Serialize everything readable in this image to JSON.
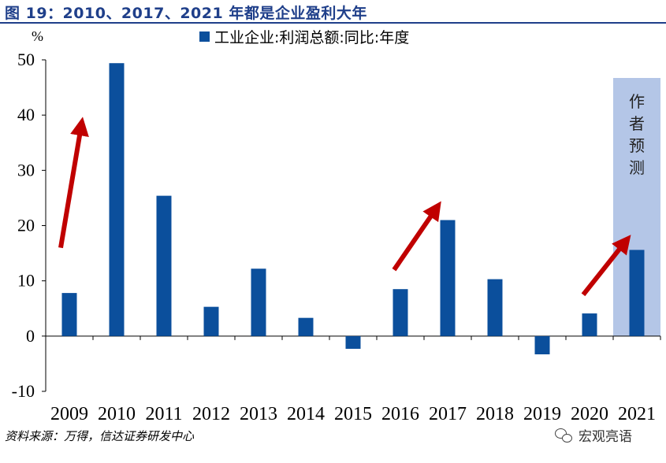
{
  "title": "图 19：2010、2017、2021 年都是企业盈利大年",
  "unit_label": "%",
  "legend": {
    "label": "工业企业:利润总额:同比:年度",
    "color": "#0b4f9c"
  },
  "forecast_label": "作者预测",
  "source": "资料来源：万得，信达证券研发中心",
  "watermark": "宏观亮语",
  "colors": {
    "bar": "#0b4f9c",
    "forecast_band": "#b4c6e7",
    "arrow": "#c00000",
    "title": "#1f3f8a"
  },
  "chart_data": {
    "type": "bar",
    "categories": [
      "2009",
      "2010",
      "2011",
      "2012",
      "2013",
      "2014",
      "2015",
      "2016",
      "2017",
      "2018",
      "2019",
      "2020",
      "2021"
    ],
    "series": [
      {
        "name": "工业企业:利润总额:同比:年度",
        "values": [
          7.8,
          49.4,
          25.4,
          5.3,
          12.2,
          3.3,
          -2.3,
          8.5,
          21.0,
          10.3,
          -3.3,
          4.1,
          15.6
        ]
      }
    ],
    "ylim": [
      -10,
      50
    ],
    "yticks": [
      -10,
      0,
      10,
      20,
      30,
      40,
      50
    ],
    "ylabel": "%",
    "forecast_category": "2021",
    "arrows": [
      {
        "from": [
          "2009",
          16
        ],
        "to": [
          "2009",
          38
        ]
      },
      {
        "from": [
          "2016",
          12
        ],
        "to": [
          "2016",
          23
        ]
      },
      {
        "from": [
          "2020",
          7.5
        ],
        "to": [
          "2020",
          17
        ]
      }
    ]
  }
}
